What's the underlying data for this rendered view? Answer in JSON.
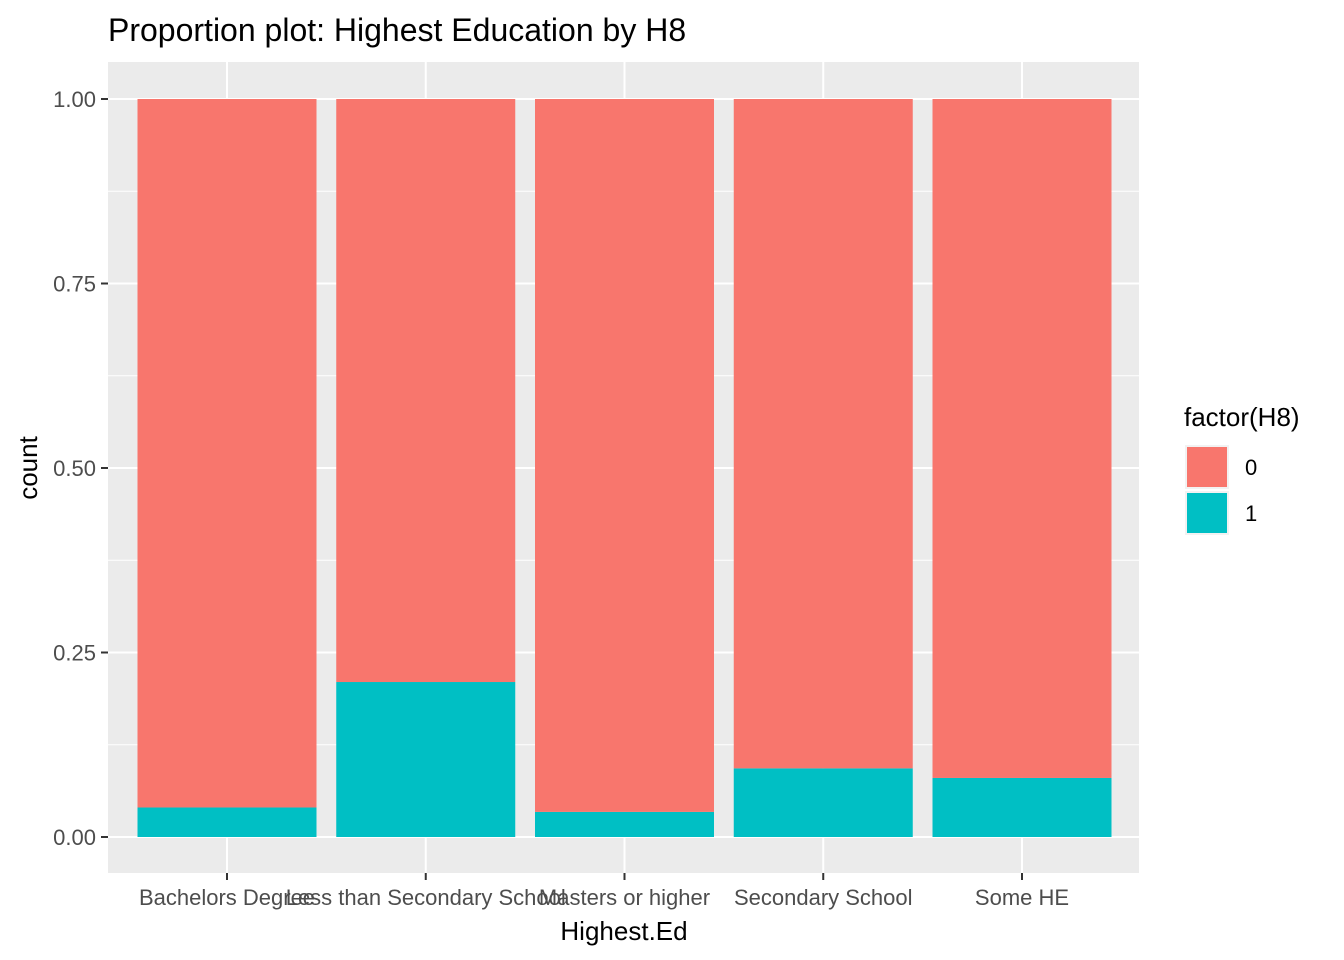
{
  "chart_data": {
    "type": "bar",
    "stacked": true,
    "position": "fill",
    "title": "Proportion plot: Highest Education by H8",
    "xlabel": "Highest.Ed",
    "ylabel": "count",
    "ylim": [
      0,
      1
    ],
    "yticks": [
      "0.00",
      "0.25",
      "0.50",
      "0.75",
      "1.00"
    ],
    "categories": [
      "Bachelors Degree",
      "Less than Secondary School",
      "Masters or higher",
      "Secondary School",
      "Some HE"
    ],
    "series": [
      {
        "name": "0",
        "color": "#F8766D",
        "values": [
          0.96,
          0.79,
          0.966,
          0.907,
          0.92
        ]
      },
      {
        "name": "1",
        "color": "#00BFC4",
        "values": [
          0.04,
          0.21,
          0.034,
          0.093,
          0.08
        ]
      }
    ],
    "legend": {
      "title": "factor(H8)",
      "placement": "right"
    },
    "grid": true,
    "panel_background": "#EBEBEB"
  }
}
